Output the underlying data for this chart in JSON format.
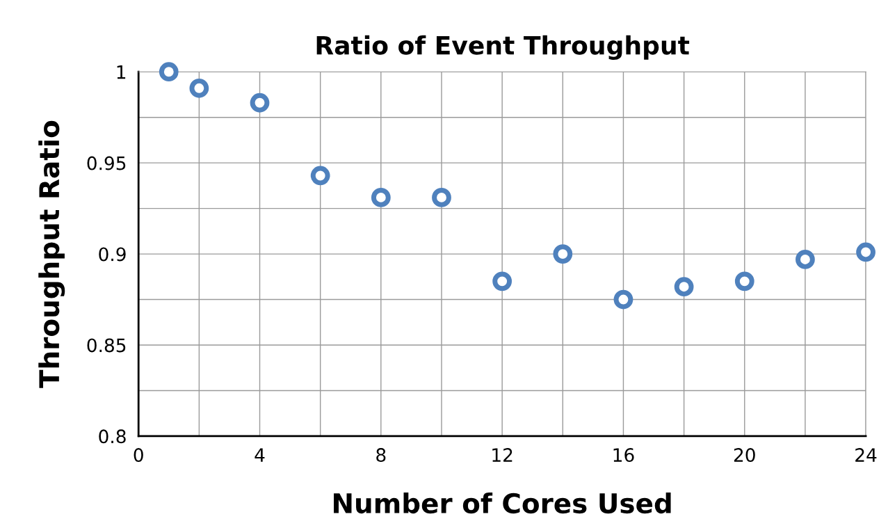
{
  "chart_data": {
    "type": "scatter",
    "title": "Ratio of Event Throughput",
    "xlabel": "Number of Cores Used",
    "ylabel": "Throughput Ratio",
    "x": [
      1,
      2,
      4,
      6,
      8,
      10,
      12,
      14,
      16,
      18,
      20,
      22,
      24
    ],
    "series": [
      {
        "color": "#4f81bd",
        "values": [
          1.0,
          0.991,
          0.983,
          0.943,
          0.931,
          0.931,
          0.885,
          0.9,
          0.875,
          0.882,
          0.885,
          0.897,
          0.901
        ]
      }
    ],
    "xlim": [
      0,
      24
    ],
    "ylim": [
      0.8,
      1
    ],
    "xticks": [
      0,
      {
        "value": 2,
        "label": null
      },
      4,
      {
        "value": 6,
        "label": null
      },
      8,
      {
        "value": 10,
        "label": null
      },
      12,
      {
        "value": 14,
        "label": null
      },
      16,
      {
        "value": 18,
        "label": null
      },
      20,
      {
        "value": 22,
        "label": null
      },
      24
    ],
    "yticks": [
      {
        "value": 0.8,
        "label": "0.8"
      },
      {
        "value": 0.825,
        "label": null
      },
      {
        "value": 0.85,
        "label": "0.85"
      },
      {
        "value": 0.875,
        "label": null
      },
      {
        "value": 0.9,
        "label": "0.9"
      },
      {
        "value": 0.925,
        "label": null
      },
      {
        "value": 0.95,
        "label": "0.95"
      },
      {
        "value": 0.975,
        "label": null
      },
      {
        "value": 1,
        "label": "1"
      }
    ],
    "grid": true,
    "marker": "circle"
  }
}
